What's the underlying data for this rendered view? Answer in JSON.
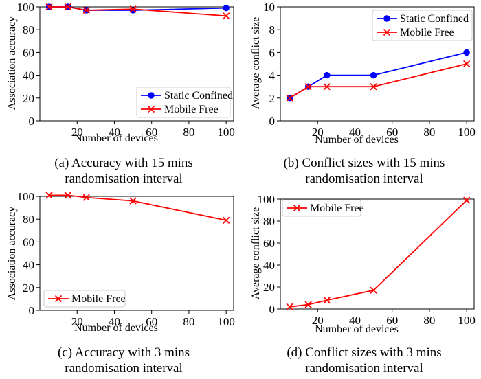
{
  "captions": [
    {
      "line1": "(a) Accuracy with 15 mins",
      "line2": "randomisation interval"
    },
    {
      "line1": "(b) Conflict sizes with 15 mins",
      "line2": "randomisation interval"
    },
    {
      "line1": "(c) Accuracy with 3 mins",
      "line2": "randomisation interval"
    },
    {
      "line1": "(d) Conflict sizes with 3 mins",
      "line2": "randomisation interval"
    }
  ],
  "chart_data": [
    {
      "type": "line",
      "xlabel": "Number of devices",
      "ylabel": "Association accuracy",
      "xlim": [
        0,
        104
      ],
      "ylim": [
        0,
        100
      ],
      "xticks": [
        20,
        40,
        60,
        80,
        100
      ],
      "yticks": [
        0,
        20,
        40,
        60,
        80,
        100
      ],
      "legend_position": "bottom-right",
      "series": [
        {
          "name": "Static Confined",
          "marker": "circle",
          "color": "#0000ff",
          "x": [
            5,
            15,
            25,
            50,
            100
          ],
          "y": [
            100,
            100,
            97,
            97,
            99
          ]
        },
        {
          "name": "Mobile Free",
          "marker": "x",
          "color": "#ff0000",
          "x": [
            5,
            15,
            25,
            50,
            100
          ],
          "y": [
            100,
            100,
            97,
            98,
            92
          ]
        }
      ]
    },
    {
      "type": "line",
      "xlabel": "Number of devices",
      "ylabel": "Average conflict size",
      "xlim": [
        0,
        104
      ],
      "ylim": [
        0,
        10
      ],
      "xticks": [
        20,
        40,
        60,
        80,
        100
      ],
      "yticks": [
        0,
        2,
        4,
        6,
        8,
        10
      ],
      "legend_position": "top-right",
      "series": [
        {
          "name": "Static Confined",
          "marker": "circle",
          "color": "#0000ff",
          "x": [
            5,
            15,
            25,
            50,
            100
          ],
          "y": [
            2,
            3,
            4,
            4,
            6
          ]
        },
        {
          "name": "Mobile Free",
          "marker": "x",
          "color": "#ff0000",
          "x": [
            5,
            15,
            25,
            50,
            100
          ],
          "y": [
            2,
            3,
            3,
            3,
            5
          ]
        }
      ]
    },
    {
      "type": "line",
      "xlabel": "Number of devices",
      "ylabel": "Association accuracy",
      "xlim": [
        0,
        104
      ],
      "ylim": [
        0,
        100
      ],
      "xticks": [
        20,
        40,
        60,
        80,
        100
      ],
      "yticks": [
        0,
        20,
        40,
        60,
        80,
        100
      ],
      "legend_position": "bottom-left",
      "series": [
        {
          "name": "Mobile Free",
          "marker": "x",
          "color": "#ff0000",
          "x": [
            5,
            15,
            25,
            50,
            100
          ],
          "y": [
            101,
            101,
            99,
            96,
            79
          ]
        }
      ]
    },
    {
      "type": "line",
      "xlabel": "Number of devices",
      "ylabel": "Average conflict size",
      "xlim": [
        0,
        104
      ],
      "ylim": [
        0,
        100
      ],
      "xticks": [
        20,
        40,
        60,
        80,
        100
      ],
      "yticks": [
        0,
        20,
        40,
        60,
        80,
        100
      ],
      "legend_position": "top-left",
      "series": [
        {
          "name": "Mobile Free",
          "marker": "x",
          "color": "#ff0000",
          "x": [
            5,
            15,
            25,
            50,
            100
          ],
          "y": [
            2,
            4,
            8,
            17,
            99
          ]
        }
      ]
    }
  ]
}
